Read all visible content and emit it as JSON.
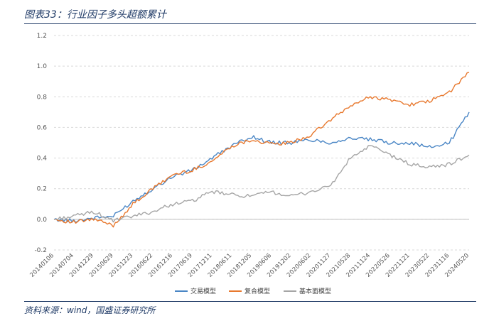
{
  "header": {
    "title": "图表33：行业因子多头超额累计"
  },
  "footer": {
    "source": "资料来源：wind，国盛证券研究所"
  },
  "chart_data": {
    "type": "line",
    "title": "",
    "xlabel": "",
    "ylabel": "",
    "ylim": [
      -0.2,
      1.2
    ],
    "yticks": [
      "1.2",
      "1.0",
      "0.8",
      "0.6",
      "0.4",
      "0.2",
      "0.0",
      "-0.2"
    ],
    "grid": true,
    "legend_position": "bottom",
    "x": [
      "20140106",
      "20140704",
      "20141229",
      "20150629",
      "20151223",
      "20160622",
      "20161216",
      "20170619",
      "20171211",
      "20180611",
      "20181205",
      "20190606",
      "20191202",
      "20200602",
      "20201127",
      "20210528",
      "20211124",
      "20220526",
      "20221121",
      "20230522",
      "20231116",
      "20240520"
    ],
    "series": [
      {
        "name": "交易模型",
        "color": "#4a86c5",
        "values": [
          0.0,
          -0.01,
          0.01,
          0.02,
          0.12,
          0.2,
          0.28,
          0.32,
          0.4,
          0.48,
          0.54,
          0.5,
          0.5,
          0.52,
          0.5,
          0.53,
          0.52,
          0.5,
          0.5,
          0.47,
          0.5,
          0.7
        ]
      },
      {
        "name": "复合模型",
        "color": "#e8792f",
        "values": [
          0.0,
          -0.02,
          0.0,
          -0.04,
          0.1,
          0.2,
          0.29,
          0.32,
          0.38,
          0.48,
          0.52,
          0.49,
          0.5,
          0.55,
          0.65,
          0.74,
          0.8,
          0.78,
          0.75,
          0.77,
          0.83,
          0.96
        ]
      },
      {
        "name": "基本面模型",
        "color": "#a6a6a6",
        "values": [
          0.0,
          0.02,
          0.05,
          -0.01,
          0.02,
          0.05,
          0.1,
          0.12,
          0.18,
          0.16,
          0.15,
          0.18,
          0.15,
          0.18,
          0.22,
          0.4,
          0.48,
          0.42,
          0.36,
          0.34,
          0.36,
          0.42
        ]
      }
    ]
  }
}
